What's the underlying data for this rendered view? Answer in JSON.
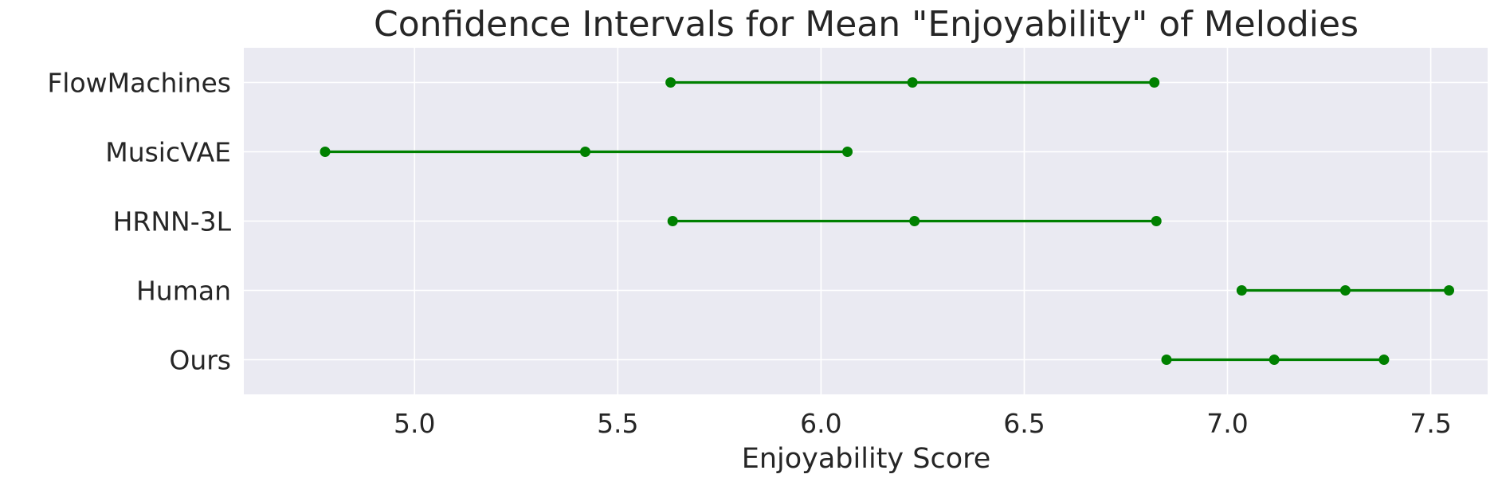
{
  "chart_data": {
    "type": "interval",
    "title": "Confidence Intervals for Mean \"Enjoyability\" of Melodies",
    "xlabel": "Enjoyability Score",
    "ylabel": "",
    "xlim": [
      4.58,
      7.64
    ],
    "xticks": [
      5.0,
      5.5,
      6.0,
      6.5,
      7.0,
      7.5
    ],
    "xtick_labels": [
      "5.0",
      "5.5",
      "6.0",
      "6.5",
      "7.0",
      "7.5"
    ],
    "grid": true,
    "color": "#008000",
    "categories": [
      "FlowMachines",
      "MusicVAE",
      "HRNN-3L",
      "Human",
      "Ours"
    ],
    "intervals": [
      {
        "category": "FlowMachines",
        "lower": 5.63,
        "mean": 6.225,
        "upper": 6.82
      },
      {
        "category": "MusicVAE",
        "lower": 4.78,
        "mean": 5.42,
        "upper": 6.065
      },
      {
        "category": "HRNN-3L",
        "lower": 5.635,
        "mean": 6.23,
        "upper": 6.825
      },
      {
        "category": "Human",
        "lower": 7.035,
        "mean": 7.29,
        "upper": 7.545
      },
      {
        "category": "Ours",
        "lower": 6.85,
        "mean": 7.115,
        "upper": 7.385
      }
    ]
  }
}
